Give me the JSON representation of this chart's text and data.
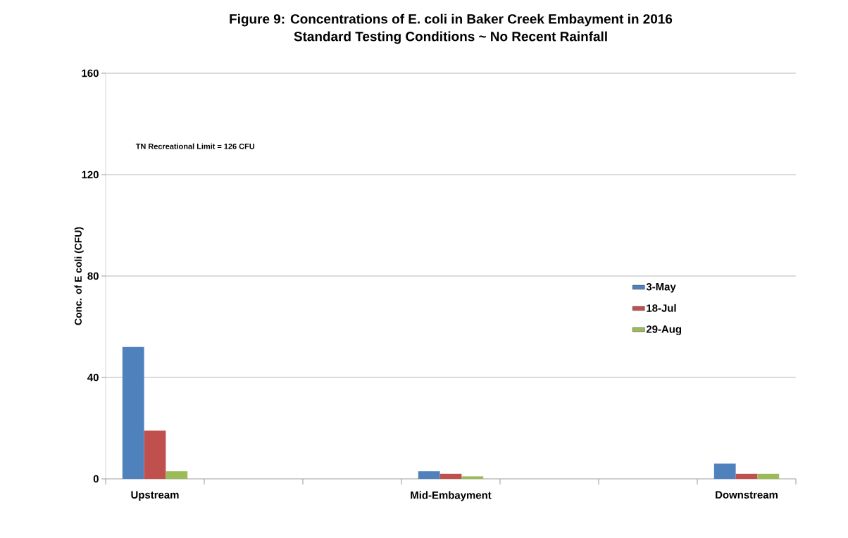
{
  "chart_data": {
    "type": "bar",
    "title": "Figure 9: Concentrations of E. coli in Baker Creek Embayment in 2016",
    "subtitle": "Standard Testing Conditions ~ No Recent Rainfall",
    "ylabel": "Conc. of E coli (CFU)",
    "categories": [
      "Upstream",
      null,
      null,
      "Mid-Embayment",
      null,
      null,
      "Downstream"
    ],
    "series": [
      {
        "name": "3-May",
        "color": "#4f81bd",
        "values": [
          52,
          null,
          null,
          3,
          null,
          null,
          6
        ]
      },
      {
        "name": "18-Jul",
        "color": "#c0504d",
        "values": [
          19,
          null,
          null,
          2,
          null,
          null,
          2
        ]
      },
      {
        "name": "29-Aug",
        "color": "#9bbb59",
        "values": [
          3,
          null,
          null,
          1,
          null,
          null,
          2
        ]
      }
    ],
    "ylim": [
      0,
      160
    ],
    "yticks": [
      0,
      40,
      80,
      120,
      160
    ],
    "grid": "y",
    "legend": "right",
    "annotations": [
      "TN Recreational Limit = 126 CFU"
    ]
  }
}
